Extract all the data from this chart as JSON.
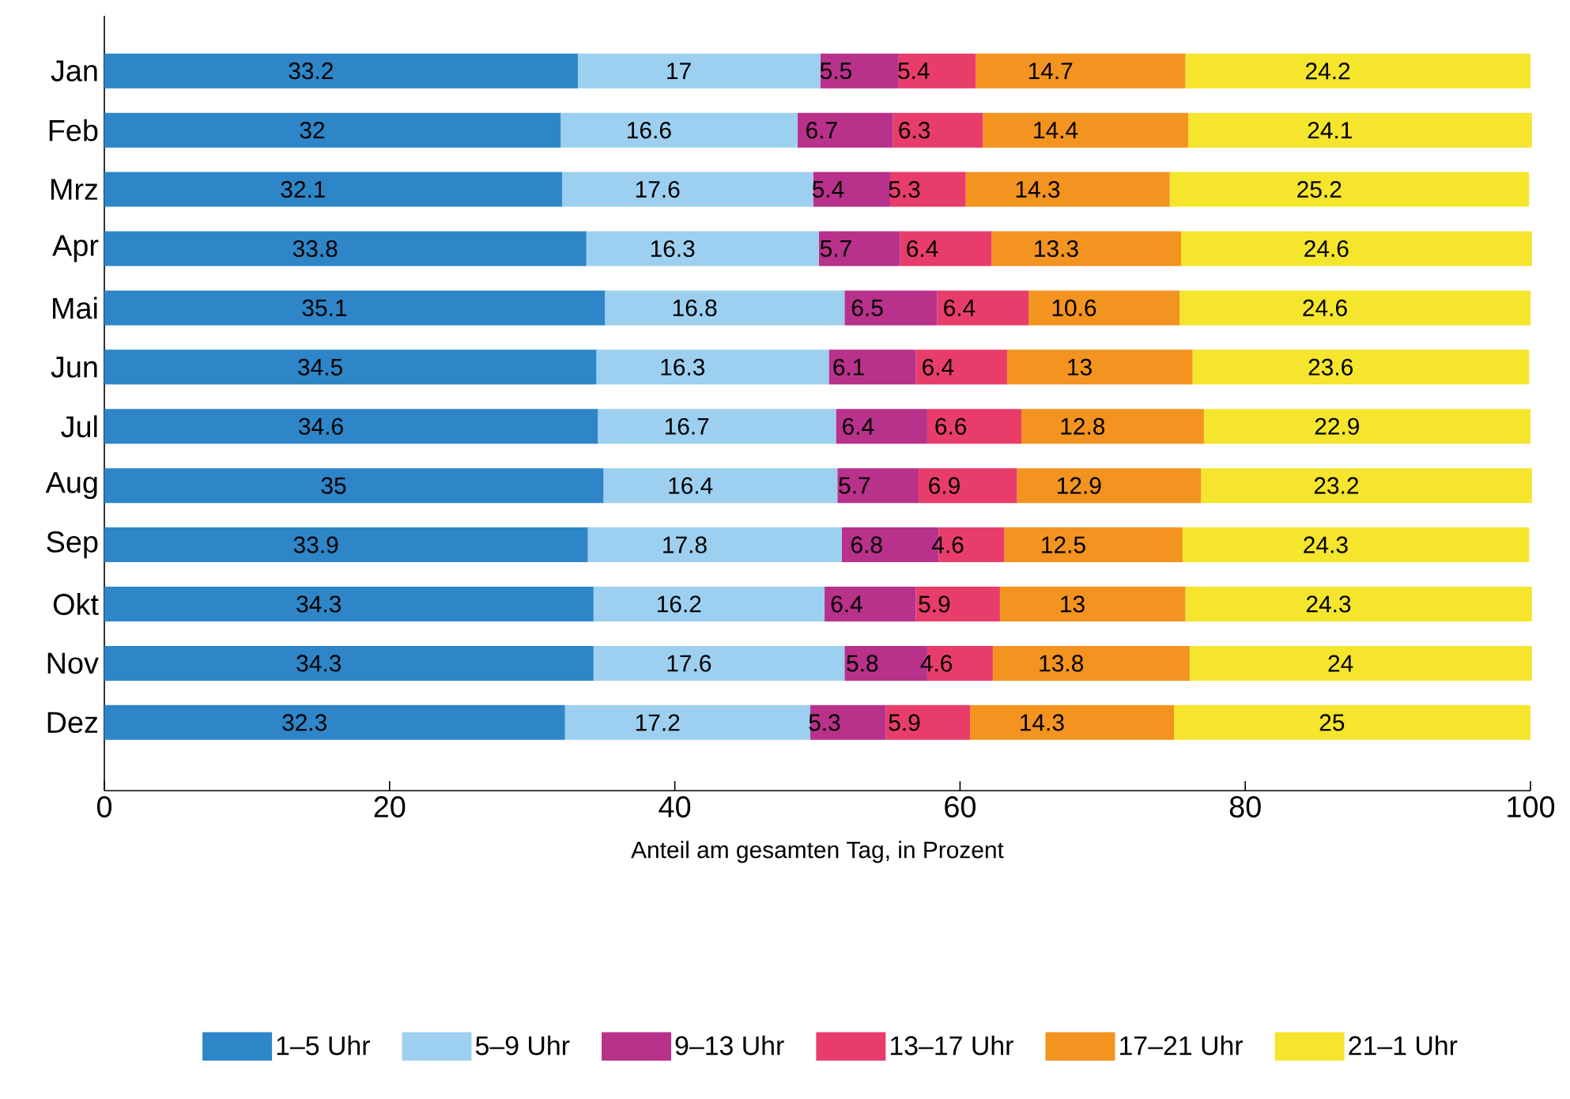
{
  "chart_data": {
    "type": "bar",
    "orientation": "horizontal",
    "stacked": true,
    "data_labels": true,
    "legend": "bottom",
    "xlabel": "Anteil am gesamten Tag, in Prozent",
    "categories": [
      "Jan",
      "Feb",
      "Mrz",
      "Apr",
      "Mai",
      "Jun",
      "Jul",
      "Aug",
      "Sep",
      "Okt",
      "Nov",
      "Dez"
    ],
    "xlim": [
      0,
      100
    ],
    "xticks": [
      0,
      20,
      40,
      60,
      80,
      100
    ],
    "series": [
      {
        "name": "1–5 Uhr",
        "color": "#2e86c8",
        "values": [
          33.2,
          32,
          32.1,
          33.8,
          35.1,
          34.5,
          34.6,
          35,
          33.9,
          34.3,
          34.3,
          32.3
        ]
      },
      {
        "name": "5–9 Uhr",
        "color": "#9dd0f0",
        "values": [
          17,
          16.6,
          17.6,
          16.3,
          16.8,
          16.3,
          16.7,
          16.4,
          17.8,
          16.2,
          17.6,
          17.2
        ]
      },
      {
        "name": "9–13 Uhr",
        "color": "#b8318a",
        "values": [
          5.5,
          6.7,
          5.4,
          5.7,
          6.5,
          6.1,
          6.4,
          5.7,
          6.8,
          6.4,
          5.8,
          5.3
        ]
      },
      {
        "name": "13–17 Uhr",
        "color": "#e83d6b",
        "values": [
          5.4,
          6.3,
          5.3,
          6.4,
          6.4,
          6.4,
          6.6,
          6.9,
          4.6,
          5.9,
          4.6,
          5.9
        ]
      },
      {
        "name": "17–21 Uhr",
        "color": "#f39320",
        "values": [
          14.7,
          14.4,
          14.3,
          13.3,
          10.6,
          13,
          12.8,
          12.9,
          12.5,
          13,
          13.8,
          14.3
        ]
      },
      {
        "name": "21–1 Uhr",
        "color": "#f5e52c",
        "values": [
          24.2,
          24.1,
          25.2,
          24.6,
          24.6,
          23.6,
          22.9,
          23.2,
          24.3,
          24.3,
          24,
          25
        ]
      }
    ]
  }
}
